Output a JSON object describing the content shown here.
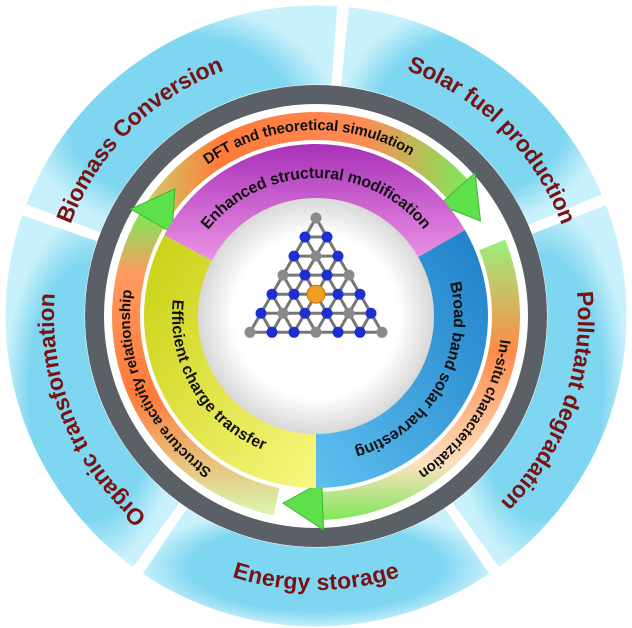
{
  "outer_ring": [
    "Biomass Conversion",
    "Solar fuel production",
    "Pollutant degradation",
    "Energy storage",
    "Organic transformation"
  ],
  "arrow_ring": [
    "DFT and theoretical simulation",
    "In-situ characterization",
    "Structure activity relationship"
  ],
  "inner_ring": [
    "Enhanced structural modification",
    "Broad band solar harvesting",
    "Efficient charge transfer"
  ]
}
